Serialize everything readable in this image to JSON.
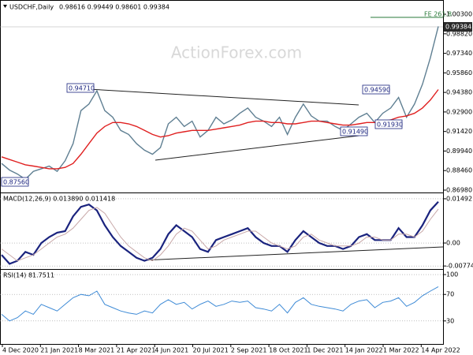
{
  "watermark": "ActionForex.com",
  "chart_data": [
    {
      "type": "line",
      "title": "USDCHF,Daily",
      "subtitle": "0.98616 0.99449 0.98601 0.99384",
      "ylim": [
        0.8686,
        1.0108
      ],
      "yticks": [
        {
          "value": 0.8698,
          "label": "0.86980"
        },
        {
          "value": 0.8846,
          "label": "0.88460"
        },
        {
          "value": 0.8994,
          "label": "0.89940"
        },
        {
          "value": 0.9142,
          "label": "0.91420"
        },
        {
          "value": 0.929,
          "label": "0.92900"
        },
        {
          "value": 0.9438,
          "label": "0.94380"
        },
        {
          "value": 0.9586,
          "label": "0.95860"
        },
        {
          "value": 0.9734,
          "label": "0.97340"
        },
        {
          "value": 0.9882,
          "label": "0.98820"
        },
        {
          "value": 1.003,
          "label": "1.00300"
        }
      ],
      "grid": false,
      "series": [
        {
          "color": "#5f7f92",
          "values": [
            0.89,
            0.885,
            0.882,
            0.878,
            0.884,
            0.886,
            0.888,
            0.884,
            0.892,
            0.905,
            0.93,
            0.935,
            0.945,
            0.93,
            0.925,
            0.915,
            0.912,
            0.905,
            0.9,
            0.897,
            0.902,
            0.92,
            0.925,
            0.918,
            0.922,
            0.91,
            0.915,
            0.925,
            0.92,
            0.923,
            0.928,
            0.932,
            0.925,
            0.922,
            0.918,
            0.925,
            0.912,
            0.925,
            0.935,
            0.926,
            0.922,
            0.922,
            0.918,
            0.915,
            0.92,
            0.925,
            0.928,
            0.921,
            0.928,
            0.932,
            0.94,
            0.925,
            0.935,
            0.95,
            0.97,
            0.99384
          ]
        },
        {
          "color": "#e02020",
          "values": [
            0.895,
            0.893,
            0.891,
            0.889,
            0.888,
            0.887,
            0.886,
            0.886,
            0.887,
            0.89,
            0.897,
            0.905,
            0.913,
            0.918,
            0.921,
            0.921,
            0.92,
            0.918,
            0.915,
            0.912,
            0.91,
            0.911,
            0.913,
            0.914,
            0.915,
            0.915,
            0.915,
            0.916,
            0.917,
            0.918,
            0.919,
            0.921,
            0.922,
            0.922,
            0.921,
            0.921,
            0.92,
            0.92,
            0.921,
            0.922,
            0.922,
            0.921,
            0.92,
            0.919,
            0.919,
            0.92,
            0.921,
            0.921,
            0.922,
            0.923,
            0.925,
            0.926,
            0.928,
            0.932,
            0.938,
            0.946
          ]
        }
      ],
      "annotations": [
        "0.94710",
        "0.87560",
        "0.94590",
        "0.91490",
        "0.91930",
        "FE 261.8",
        "0.99384"
      ]
    },
    {
      "type": "line",
      "title": "MACD(12,26,9) 0.013890 0.011418",
      "ylim": [
        -0.0085,
        0.0165
      ],
      "yticks": [
        -0.007744,
        {
          "value": 0,
          "label": "0.00"
        },
        0.01492
      ],
      "grid": true,
      "series": [
        {
          "color": "#1a237e",
          "width": 2.2,
          "values": [
            -0.004,
            -0.007,
            -0.006,
            -0.003,
            -0.004,
            0.0,
            0.002,
            0.0035,
            0.004,
            0.009,
            0.0122,
            0.013,
            0.011,
            0.006,
            0.002,
            -0.001,
            -0.003,
            -0.005,
            -0.006,
            -0.005,
            -0.002,
            0.003,
            0.006,
            0.004,
            0.002,
            -0.002,
            -0.003,
            0.001,
            0.002,
            0.003,
            0.004,
            0.005,
            0.002,
            0.0,
            -0.001,
            -0.001,
            -0.003,
            0.001,
            0.004,
            0.002,
            0.0,
            -0.001,
            -0.001,
            -0.002,
            -0.001,
            0.002,
            0.003,
            0.001,
            0.001,
            0.001,
            0.005,
            0.002,
            0.002,
            0.006,
            0.011,
            0.01389
          ]
        },
        {
          "color": "#c8a8a8",
          "width": 1,
          "values": [
            -0.002,
            -0.004,
            -0.006,
            -0.005,
            -0.004,
            -0.002,
            0.0,
            0.002,
            0.003,
            0.005,
            0.008,
            0.011,
            0.012,
            0.01,
            0.006,
            0.002,
            -0.001,
            -0.003,
            -0.005,
            -0.006,
            -0.004,
            -0.001,
            0.003,
            0.005,
            0.004,
            0.001,
            -0.002,
            -0.001,
            0.001,
            0.002,
            0.003,
            0.004,
            0.004,
            0.002,
            0.0,
            -0.001,
            -0.002,
            -0.001,
            0.002,
            0.003,
            0.001,
            0.0,
            -0.001,
            -0.001,
            -0.001,
            0.0,
            0.002,
            0.002,
            0.001,
            0.001,
            0.003,
            0.003,
            0.002,
            0.004,
            0.008,
            0.011418
          ]
        }
      ]
    },
    {
      "type": "line",
      "title": "RSI(14) 81.7511",
      "ylim": [
        0,
        106
      ],
      "yticks": [
        30,
        70,
        100
      ],
      "grid": true,
      "series": [
        {
          "color": "#3d8ad6",
          "width": 1,
          "values": [
            40,
            30,
            35,
            45,
            40,
            55,
            50,
            45,
            55,
            65,
            70,
            68,
            75,
            55,
            50,
            45,
            42,
            40,
            45,
            42,
            55,
            62,
            55,
            58,
            48,
            55,
            60,
            52,
            55,
            60,
            58,
            60,
            50,
            48,
            45,
            55,
            42,
            58,
            65,
            55,
            52,
            50,
            48,
            45,
            55,
            60,
            62,
            50,
            58,
            60,
            65,
            52,
            58,
            68,
            75,
            81.7511
          ]
        }
      ],
      "x_labels": [
        "4 Dec 2020",
        "21 Jan 2021",
        "8 Mar 2021",
        "21 Apr 2021",
        "4 Jun 2021",
        "20 Jul 2021",
        "2 Sep 2021",
        "18 Oct 2021",
        "1 Dec 2021",
        "14 Jan 2022",
        "1 Mar 2022",
        "14 Apr 2022"
      ]
    }
  ]
}
